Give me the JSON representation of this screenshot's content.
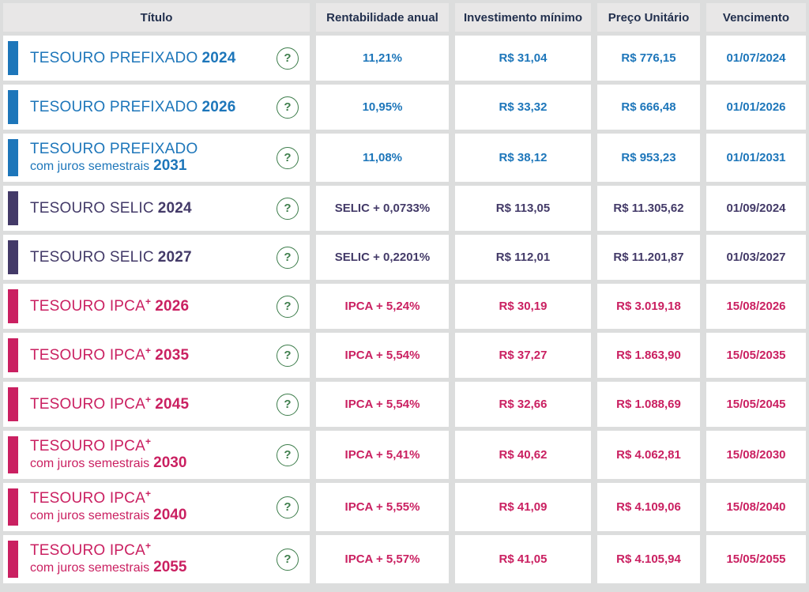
{
  "table": {
    "columns": [
      "Título",
      "Rentabilidade anual",
      "Investimento mínimo",
      "Preço Unitário",
      "Vencimento"
    ],
    "help_label": "?"
  },
  "colors": {
    "prefixado": "#1d76ba",
    "selic": "#433a68",
    "ipca": "#ca2061",
    "help_green": "#3e7e4c",
    "header_text": "#22304e",
    "row_background": "#ffffff",
    "header_background": "#e8e7e7",
    "page_background": "#dcdddd"
  },
  "rows": [
    {
      "title": "TESOURO PREFIXADO",
      "sup": "",
      "subtitle": "",
      "year": "2024",
      "theme": "prefixado",
      "rate": "11,21%",
      "min_investment": "R$ 31,04",
      "unit_price": "R$ 776,15",
      "maturity": "01/07/2024"
    },
    {
      "title": "TESOURO PREFIXADO",
      "sup": "",
      "subtitle": "",
      "year": "2026",
      "theme": "prefixado",
      "rate": "10,95%",
      "min_investment": "R$ 33,32",
      "unit_price": "R$ 666,48",
      "maturity": "01/01/2026"
    },
    {
      "title": "TESOURO PREFIXADO",
      "sup": "",
      "subtitle": "com juros semestrais",
      "year": "2031",
      "theme": "prefixado",
      "rate": "11,08%",
      "min_investment": "R$ 38,12",
      "unit_price": "R$ 953,23",
      "maturity": "01/01/2031"
    },
    {
      "title": "TESOURO SELIC",
      "sup": "",
      "subtitle": "",
      "year": "2024",
      "theme": "selic",
      "rate": "SELIC + 0,0733%",
      "min_investment": "R$ 113,05",
      "unit_price": "R$ 11.305,62",
      "maturity": "01/09/2024"
    },
    {
      "title": "TESOURO SELIC",
      "sup": "",
      "subtitle": "",
      "year": "2027",
      "theme": "selic",
      "rate": "SELIC + 0,2201%",
      "min_investment": "R$ 112,01",
      "unit_price": "R$ 11.201,87",
      "maturity": "01/03/2027"
    },
    {
      "title": "TESOURO IPCA",
      "sup": "+",
      "subtitle": "",
      "year": "2026",
      "theme": "ipca",
      "rate": "IPCA + 5,24%",
      "min_investment": "R$ 30,19",
      "unit_price": "R$ 3.019,18",
      "maturity": "15/08/2026"
    },
    {
      "title": "TESOURO IPCA",
      "sup": "+",
      "subtitle": "",
      "year": "2035",
      "theme": "ipca",
      "rate": "IPCA + 5,54%",
      "min_investment": "R$ 37,27",
      "unit_price": "R$ 1.863,90",
      "maturity": "15/05/2035"
    },
    {
      "title": "TESOURO IPCA",
      "sup": "+",
      "subtitle": "",
      "year": "2045",
      "theme": "ipca",
      "rate": "IPCA + 5,54%",
      "min_investment": "R$ 32,66",
      "unit_price": "R$ 1.088,69",
      "maturity": "15/05/2045"
    },
    {
      "title": "TESOURO IPCA",
      "sup": "+",
      "subtitle": "com juros semestrais",
      "year": "2030",
      "theme": "ipca",
      "rate": "IPCA + 5,41%",
      "min_investment": "R$ 40,62",
      "unit_price": "R$ 4.062,81",
      "maturity": "15/08/2030"
    },
    {
      "title": "TESOURO IPCA",
      "sup": "+",
      "subtitle": "com juros semestrais",
      "year": "2040",
      "theme": "ipca",
      "rate": "IPCA + 5,55%",
      "min_investment": "R$ 41,09",
      "unit_price": "R$ 4.109,06",
      "maturity": "15/08/2040"
    },
    {
      "title": "TESOURO IPCA",
      "sup": "+",
      "subtitle": "com juros semestrais",
      "year": "2055",
      "theme": "ipca",
      "rate": "IPCA + 5,57%",
      "min_investment": "R$ 41,05",
      "unit_price": "R$ 4.105,94",
      "maturity": "15/05/2055"
    }
  ]
}
